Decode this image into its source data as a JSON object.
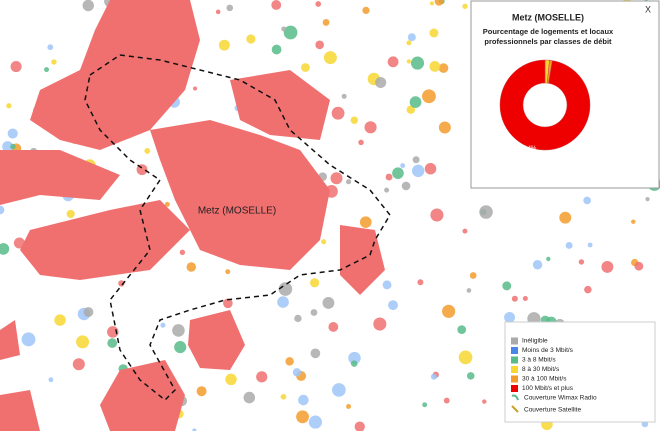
{
  "map_label": "Metz (MOSELLE)",
  "popup": {
    "close": "X",
    "title": "Metz (MOSELLE)",
    "subtitle_lines": [
      "Pourcentage de logements et locaux",
      "professionnels par classes de débit"
    ],
    "chart": {
      "type": "pie",
      "values": [
        1.6,
        1.0,
        97.4
      ],
      "colors": [
        "#f7d732",
        "#f39c2b",
        "#ee0000"
      ],
      "value_labels": [
        null,
        null,
        "97.4%"
      ]
    }
  },
  "legend": {
    "items": [
      {
        "label": "Inéligible",
        "color": "#aaaaaa"
      },
      {
        "label": "Moins de 3 Mbit/s",
        "color": "#4a86e8"
      },
      {
        "label": "3 à 8 Mbit/s",
        "color": "#57bb8a"
      },
      {
        "label": "8 à 30 Mbit/s",
        "color": "#f7d732"
      },
      {
        "label": "30 à 100 Mbit/s",
        "color": "#f39c2b"
      },
      {
        "label": "100 Mbit/s et plus",
        "color": "#ee0000"
      }
    ],
    "coverage": [
      "Couverture Wimax Radio",
      "Couverture Satellite"
    ]
  }
}
